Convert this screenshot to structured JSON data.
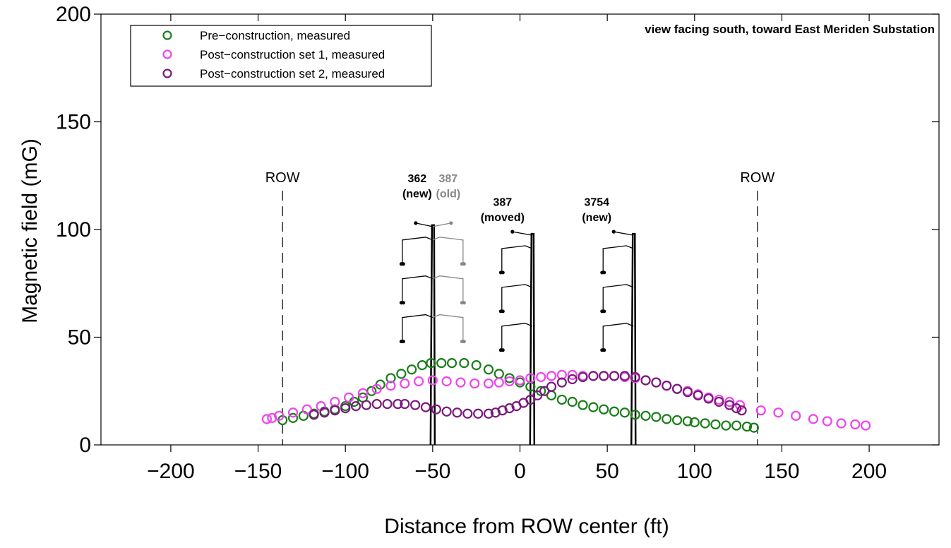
{
  "chart_data": {
    "type": "scatter",
    "title": "",
    "annotation_view": "view facing south, toward East Meriden Substation",
    "xlabel": "Distance from ROW center (ft)",
    "ylabel": "Magnetic field (mG)",
    "xlim": [
      -240,
      240
    ],
    "ylim": [
      0,
      200
    ],
    "x_ticks": [
      -200,
      -150,
      -100,
      -50,
      0,
      50,
      100,
      150,
      200
    ],
    "x_tick_labels": [
      "−200",
      "−150",
      "−100",
      "−50",
      "0",
      "50",
      "100",
      "150",
      "200"
    ],
    "y_ticks": [
      0,
      50,
      100,
      150,
      200
    ],
    "y_tick_labels": [
      "0",
      "50",
      "100",
      "150",
      "200"
    ],
    "grid": false,
    "legend_position": "top-left",
    "row_lines": {
      "x": [
        -136,
        136
      ],
      "label": "ROW"
    },
    "structures": [
      {
        "x": -50,
        "label_line1": "362",
        "label_line2": "(new)",
        "color": "#000000",
        "arms": "left",
        "top": 102
      },
      {
        "x": -50,
        "label_line1": "387",
        "label_line2": "(old)",
        "color": "#888888",
        "arms": "right",
        "top": 102
      },
      {
        "x": 7,
        "label_line1": "387",
        "label_line2": "(moved)",
        "color": "#000000",
        "arms": "left",
        "top": 98
      },
      {
        "x": 65,
        "label_line1": "3754",
        "label_line2": "(new)",
        "color": "#000000",
        "arms": "left",
        "top": 98
      }
    ],
    "series": [
      {
        "name": "Pre−construction, measured",
        "color": "#1a7d1a",
        "x": [
          -136,
          -130,
          -124,
          -118,
          -112,
          -106,
          -100,
          -95,
          -90,
          -85,
          -80,
          -74,
          -68,
          -62,
          -56,
          -51,
          -45,
          -39,
          -32,
          -25,
          -18,
          -12,
          -6,
          0,
          6,
          12,
          18,
          24,
          30,
          36,
          42,
          48,
          54,
          60,
          66,
          72,
          78,
          84,
          90,
          96,
          100,
          106,
          112,
          118,
          124,
          130,
          134
        ],
        "y": [
          11.5,
          12.5,
          13.5,
          14.5,
          15.5,
          16.5,
          18,
          20,
          22,
          25,
          28,
          31,
          33,
          35,
          37,
          38,
          38,
          38,
          38,
          37,
          35,
          33,
          31,
          29,
          27,
          25,
          23,
          21,
          20,
          18.5,
          17.5,
          16.5,
          15.5,
          15,
          14,
          13.5,
          13,
          12,
          11.5,
          11,
          10.5,
          10,
          9.5,
          9,
          9,
          8.5,
          8
        ]
      },
      {
        "name": "Post−construction set 1, measured",
        "color": "#ee44ee",
        "x": [
          -145,
          -142,
          -138,
          -130,
          -122,
          -114,
          -106,
          -98,
          -90,
          -82,
          -74,
          -66,
          -58,
          -50,
          -42,
          -34,
          -26,
          -18,
          -12,
          -6,
          0,
          6,
          12,
          18,
          24,
          30,
          36,
          42,
          48,
          54,
          60,
          66,
          72,
          78,
          84,
          90,
          96,
          102,
          108,
          114,
          120,
          126,
          138,
          148,
          158,
          168,
          176,
          184,
          192,
          198
        ],
        "y": [
          12,
          12.5,
          13.5,
          15,
          16.5,
          18,
          20,
          22,
          24,
          26,
          27.5,
          28.5,
          29.5,
          30,
          29.5,
          29,
          28.5,
          28.5,
          29,
          29.5,
          30,
          31,
          31.5,
          32,
          32.5,
          32.5,
          32,
          32,
          32,
          32,
          31.5,
          31,
          30,
          29,
          27.5,
          26,
          25,
          23.5,
          22,
          21,
          20,
          18.5,
          16,
          15,
          13.5,
          12,
          11,
          10,
          9.5,
          9
        ]
      },
      {
        "name": "Post−construction set 2, measured",
        "color": "#7a1a7a",
        "x": [
          -118,
          -112,
          -106,
          -100,
          -94,
          -88,
          -82,
          -76,
          -70,
          -66,
          -60,
          -54,
          -48,
          -42,
          -36,
          -30,
          -24,
          -18,
          -14,
          -10,
          -6,
          -2,
          2,
          6,
          10,
          14,
          18,
          24,
          30,
          36,
          42,
          48,
          54,
          60,
          66,
          72,
          78,
          84,
          90,
          96,
          102,
          108,
          114,
          120,
          124,
          127
        ],
        "y": [
          14,
          15,
          16,
          17,
          18,
          18.5,
          19,
          19,
          19,
          19,
          18.5,
          17.5,
          16.5,
          15.5,
          15,
          14.5,
          14.5,
          14.5,
          15,
          16,
          17,
          18,
          19.5,
          21,
          23,
          25,
          27,
          29,
          30.5,
          31.5,
          32,
          32,
          32,
          32,
          31.5,
          30,
          29,
          27.5,
          26,
          24.5,
          23,
          21.5,
          20,
          18.5,
          17,
          16
        ]
      }
    ]
  }
}
